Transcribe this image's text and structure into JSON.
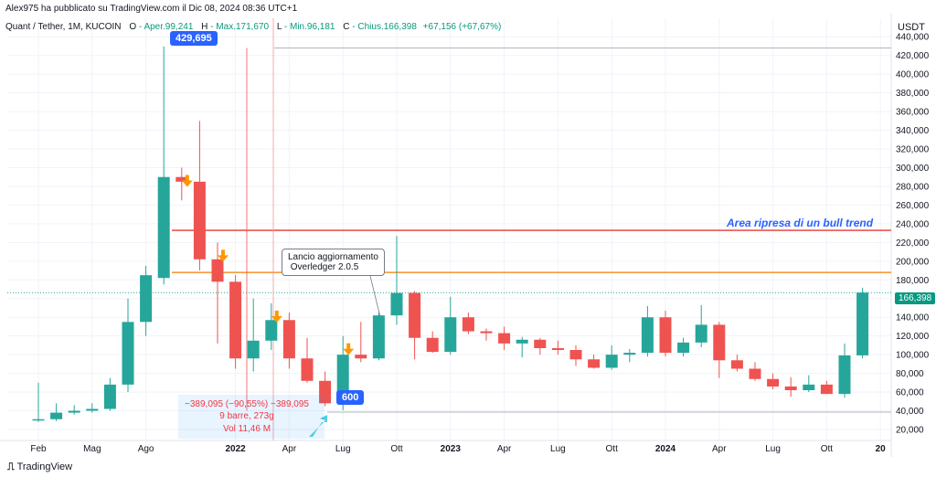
{
  "header": {
    "published": "Alex975 ha pubblicato su TradingView.com il Dic 08, 2024 08:36 UTC+1",
    "symbol": "Quant / Tether, 1M, KUCOIN",
    "open_label": "O",
    "open_value": "- Aper.99,241",
    "high_label": "H",
    "high_value": "- Max.171,670",
    "low_label": "L",
    "low_value": "- Min.96,181",
    "close_label": "C",
    "close_value": "- Chius.166,398",
    "change_value": "+67,156 (+67,67%)"
  },
  "currency": "USDT",
  "last_price_tag": "166,398",
  "annotations": {
    "peak_label": "429,695",
    "low_label": "600",
    "news_box": "Lancio aggiornamento\n Overledger 2.0.5",
    "bull_trend": "Area ripresa di un bull trend",
    "measure_line1": "−389,095 (−90,55%) −389,095",
    "measure_line2": "9 barre, 273g",
    "measure_line3": "Vol 11,46 M"
  },
  "footer_logo": "TradingView",
  "colors": {
    "up": "#26a69a",
    "down": "#ef5350",
    "red_line": "#e53935",
    "orange_line": "#f57c00",
    "accent": "#2962ff",
    "arrow": "#ff9800"
  },
  "chart_data": {
    "type": "candlestick",
    "y_range": [
      20000,
      450000
    ],
    "y_ticks": [
      20000,
      40000,
      60000,
      80000,
      100000,
      120000,
      140000,
      160000,
      180000,
      200000,
      220000,
      240000,
      260000,
      280000,
      300000,
      320000,
      340000,
      360000,
      380000,
      400000,
      420000,
      440000
    ],
    "y_tick_labels": [
      "20,000",
      "40,000",
      "60,000",
      "80,000",
      "100,000",
      "120,000",
      "140,000",
      "160,000",
      "180,000",
      "200,000",
      "220,000",
      "240,000",
      "260,000",
      "280,000",
      "300,000",
      "320,000",
      "340,000",
      "360,000",
      "380,000",
      "400,000",
      "420,000",
      "440,000"
    ],
    "x_labels": [
      {
        "label": "Feb",
        "index": 0
      },
      {
        "label": "Mag",
        "index": 3
      },
      {
        "label": "Ago",
        "index": 6
      },
      {
        "label": "2022",
        "index": 11,
        "bold": true
      },
      {
        "label": "Apr",
        "index": 14
      },
      {
        "label": "Lug",
        "index": 17
      },
      {
        "label": "Ott",
        "index": 20
      },
      {
        "label": "2023",
        "index": 23,
        "bold": true
      },
      {
        "label": "Apr",
        "index": 26
      },
      {
        "label": "Lug",
        "index": 29
      },
      {
        "label": "Ott",
        "index": 32
      },
      {
        "label": "2024",
        "index": 35,
        "bold": true
      },
      {
        "label": "Apr",
        "index": 38
      },
      {
        "label": "Lug",
        "index": 41
      },
      {
        "label": "Ott",
        "index": 44
      },
      {
        "label": "20",
        "index": 47,
        "bold": true
      }
    ],
    "candles": [
      {
        "o": 30000,
        "h": 70000,
        "l": 28000,
        "c": 31000
      },
      {
        "o": 31000,
        "h": 48000,
        "l": 29000,
        "c": 38000
      },
      {
        "o": 38000,
        "h": 46000,
        "l": 36000,
        "c": 40000
      },
      {
        "o": 40000,
        "h": 48000,
        "l": 38000,
        "c": 42000
      },
      {
        "o": 42000,
        "h": 75000,
        "l": 40000,
        "c": 68000
      },
      {
        "o": 68000,
        "h": 160000,
        "l": 60000,
        "c": 135000
      },
      {
        "o": 135000,
        "h": 195000,
        "l": 120000,
        "c": 185000
      },
      {
        "o": 182000,
        "h": 429695,
        "l": 175000,
        "c": 290000
      },
      {
        "o": 290000,
        "h": 300000,
        "l": 265000,
        "c": 285000
      },
      {
        "o": 285000,
        "h": 350000,
        "l": 190000,
        "c": 202000
      },
      {
        "o": 202000,
        "h": 220000,
        "l": 112000,
        "c": 178000
      },
      {
        "o": 178000,
        "h": 185000,
        "l": 85000,
        "c": 96000
      },
      {
        "o": 96000,
        "h": 160000,
        "l": 82000,
        "c": 115000
      },
      {
        "o": 115000,
        "h": 155000,
        "l": 105000,
        "c": 137000
      },
      {
        "o": 137000,
        "h": 145000,
        "l": 85000,
        "c": 96000
      },
      {
        "o": 96000,
        "h": 118000,
        "l": 70000,
        "c": 72000
      },
      {
        "o": 72000,
        "h": 82000,
        "l": 45000,
        "c": 48000
      },
      {
        "o": 48000,
        "h": 120000,
        "l": 40600,
        "c": 100000
      },
      {
        "o": 100000,
        "h": 135000,
        "l": 92000,
        "c": 96000
      },
      {
        "o": 96000,
        "h": 145000,
        "l": 94000,
        "c": 142000
      },
      {
        "o": 142000,
        "h": 227000,
        "l": 132000,
        "c": 166000
      },
      {
        "o": 166000,
        "h": 168000,
        "l": 95000,
        "c": 118000
      },
      {
        "o": 118000,
        "h": 125000,
        "l": 102000,
        "c": 103000
      },
      {
        "o": 103000,
        "h": 162000,
        "l": 100000,
        "c": 140000
      },
      {
        "o": 140000,
        "h": 145000,
        "l": 122000,
        "c": 125000
      },
      {
        "o": 125000,
        "h": 128000,
        "l": 115000,
        "c": 123000
      },
      {
        "o": 123000,
        "h": 130000,
        "l": 105000,
        "c": 112000
      },
      {
        "o": 112000,
        "h": 119000,
        "l": 97000,
        "c": 116000
      },
      {
        "o": 116000,
        "h": 118000,
        "l": 100000,
        "c": 107000
      },
      {
        "o": 107000,
        "h": 115000,
        "l": 100000,
        "c": 105000
      },
      {
        "o": 105000,
        "h": 110000,
        "l": 88000,
        "c": 95000
      },
      {
        "o": 95000,
        "h": 100000,
        "l": 85000,
        "c": 86000
      },
      {
        "o": 86000,
        "h": 110000,
        "l": 84000,
        "c": 100000
      },
      {
        "o": 100000,
        "h": 106000,
        "l": 92000,
        "c": 102000
      },
      {
        "o": 102000,
        "h": 152000,
        "l": 98000,
        "c": 140000
      },
      {
        "o": 140000,
        "h": 147000,
        "l": 98000,
        "c": 102000
      },
      {
        "o": 102000,
        "h": 118000,
        "l": 98000,
        "c": 113000
      },
      {
        "o": 113000,
        "h": 153000,
        "l": 108000,
        "c": 132000
      },
      {
        "o": 132000,
        "h": 135000,
        "l": 75000,
        "c": 94000
      },
      {
        "o": 94000,
        "h": 100000,
        "l": 82000,
        "c": 85000
      },
      {
        "o": 85000,
        "h": 92000,
        "l": 72000,
        "c": 74000
      },
      {
        "o": 74000,
        "h": 80000,
        "l": 63000,
        "c": 66000
      },
      {
        "o": 66000,
        "h": 76000,
        "l": 55000,
        "c": 62000
      },
      {
        "o": 62000,
        "h": 78000,
        "l": 60000,
        "c": 68000
      },
      {
        "o": 68000,
        "h": 72000,
        "l": 58000,
        "c": 58000
      },
      {
        "o": 58000,
        "h": 112000,
        "l": 54000,
        "c": 99241
      },
      {
        "o": 99241,
        "h": 171670,
        "l": 96181,
        "c": 166398
      }
    ],
    "horizontal_lines": [
      {
        "value": 233000,
        "color": "#e53935"
      },
      {
        "value": 188000,
        "color": "#f57c00"
      }
    ],
    "down_arrows_at": [
      8,
      10,
      13,
      17
    ]
  }
}
